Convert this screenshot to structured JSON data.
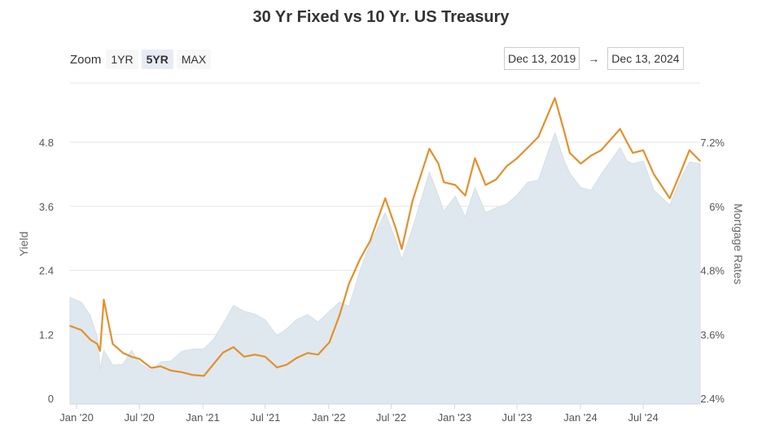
{
  "title": "30 Yr Fixed vs 10 Yr. US Treasury",
  "zoom": {
    "label": "Zoom",
    "buttons": [
      "1YR",
      "5YR",
      "MAX"
    ],
    "active": "5YR"
  },
  "range": {
    "from": "Dec 13, 2019",
    "arrow": "→",
    "to": "Dec 13, 2024"
  },
  "colors": {
    "mortgage_line": "#e3902b",
    "treasury_area": "#dfe8ef",
    "grid": "#e6e6e6"
  },
  "chart_data": {
    "type": "line",
    "x_labels": [
      "Jan '20",
      "Jul '20",
      "Jan '21",
      "Jul '21",
      "Jan '22",
      "Jul '22",
      "Jan '23",
      "Jul '23",
      "Jan '24",
      "Jul '24"
    ],
    "y_left": {
      "label": "Yield",
      "ticks": [
        "0",
        "1.2",
        "2.4",
        "3.6",
        "4.8"
      ],
      "range": [
        0,
        4.8
      ]
    },
    "y_right": {
      "label": "Mortgage Rates",
      "ticks": [
        "2.4%",
        "3.6%",
        "4.8%",
        "6%",
        "7.2%"
      ],
      "range": [
        2.4,
        7.2
      ]
    },
    "grid": true,
    "series": [
      {
        "name": "10 Yr. US Treasury",
        "kind": "area",
        "axis": "left",
        "x": [
          "2019-12-13",
          "2020-01-15",
          "2020-02-10",
          "2020-03-01",
          "2020-03-09",
          "2020-03-20",
          "2020-04-15",
          "2020-05-15",
          "2020-06-08",
          "2020-07-01",
          "2020-08-04",
          "2020-09-01",
          "2020-10-01",
          "2020-11-01",
          "2020-12-01",
          "2021-01-04",
          "2021-02-01",
          "2021-03-01",
          "2021-03-31",
          "2021-05-01",
          "2021-06-01",
          "2021-07-01",
          "2021-08-04",
          "2021-09-01",
          "2021-10-01",
          "2021-11-01",
          "2021-12-01",
          "2022-01-03",
          "2022-02-01",
          "2022-03-01",
          "2022-04-01",
          "2022-05-01",
          "2022-06-14",
          "2022-07-15",
          "2022-08-01",
          "2022-09-01",
          "2022-10-20",
          "2022-11-15",
          "2022-12-01",
          "2023-01-03",
          "2023-02-01",
          "2023-03-01",
          "2023-04-01",
          "2023-05-01",
          "2023-06-01",
          "2023-07-01",
          "2023-08-01",
          "2023-09-01",
          "2023-10-19",
          "2023-11-15",
          "2023-12-01",
          "2024-01-02",
          "2024-02-01",
          "2024-03-01",
          "2024-04-25",
          "2024-05-15",
          "2024-06-01",
          "2024-07-01",
          "2024-08-01",
          "2024-09-16",
          "2024-10-15",
          "2024-11-12",
          "2024-12-13"
        ],
        "values": [
          1.89,
          1.8,
          1.55,
          1.15,
          0.54,
          0.9,
          0.62,
          0.64,
          0.9,
          0.66,
          0.52,
          0.68,
          0.7,
          0.88,
          0.92,
          0.93,
          1.1,
          1.4,
          1.74,
          1.63,
          1.58,
          1.47,
          1.17,
          1.3,
          1.48,
          1.57,
          1.43,
          1.63,
          1.8,
          1.72,
          2.38,
          2.9,
          3.48,
          2.95,
          2.6,
          3.19,
          4.24,
          3.8,
          3.5,
          3.79,
          3.4,
          3.95,
          3.48,
          3.57,
          3.64,
          3.81,
          4.05,
          4.09,
          4.98,
          4.45,
          4.22,
          3.95,
          3.9,
          4.2,
          4.7,
          4.45,
          4.4,
          4.45,
          3.9,
          3.62,
          4.08,
          4.43,
          4.4
        ]
      },
      {
        "name": "30 Yr Fixed",
        "kind": "line",
        "axis": "right",
        "x": [
          "2019-12-13",
          "2020-01-15",
          "2020-02-10",
          "2020-03-01",
          "2020-03-09",
          "2020-03-20",
          "2020-04-15",
          "2020-05-15",
          "2020-06-08",
          "2020-07-01",
          "2020-08-04",
          "2020-09-01",
          "2020-10-01",
          "2020-11-01",
          "2020-12-01",
          "2021-01-04",
          "2021-02-01",
          "2021-03-01",
          "2021-03-31",
          "2021-05-01",
          "2021-06-01",
          "2021-07-01",
          "2021-08-04",
          "2021-09-01",
          "2021-10-01",
          "2021-11-01",
          "2021-12-01",
          "2022-01-03",
          "2022-02-01",
          "2022-03-01",
          "2022-04-01",
          "2022-05-01",
          "2022-06-14",
          "2022-07-15",
          "2022-08-01",
          "2022-09-01",
          "2022-10-20",
          "2022-11-15",
          "2022-12-01",
          "2023-01-03",
          "2023-02-01",
          "2023-03-01",
          "2023-04-01",
          "2023-05-01",
          "2023-06-01",
          "2023-07-01",
          "2023-08-01",
          "2023-09-01",
          "2023-10-19",
          "2023-11-15",
          "2023-12-01",
          "2024-01-02",
          "2024-02-01",
          "2024-03-01",
          "2024-04-25",
          "2024-05-15",
          "2024-06-01",
          "2024-07-01",
          "2024-08-01",
          "2024-09-16",
          "2024-10-15",
          "2024-11-12",
          "2024-12-13"
        ],
        "values": [
          3.76,
          3.68,
          3.5,
          3.42,
          3.29,
          4.25,
          3.42,
          3.25,
          3.18,
          3.14,
          2.97,
          3.0,
          2.92,
          2.89,
          2.84,
          2.82,
          3.04,
          3.26,
          3.36,
          3.18,
          3.22,
          3.18,
          2.98,
          3.03,
          3.16,
          3.25,
          3.22,
          3.45,
          3.95,
          4.55,
          5.0,
          5.35,
          6.15,
          5.58,
          5.2,
          6.1,
          7.08,
          6.8,
          6.45,
          6.4,
          6.2,
          6.9,
          6.4,
          6.5,
          6.75,
          6.9,
          7.1,
          7.3,
          8.03,
          7.4,
          7.0,
          6.8,
          6.95,
          7.05,
          7.45,
          7.2,
          7.0,
          7.05,
          6.6,
          6.15,
          6.6,
          7.05,
          6.85
        ]
      }
    ]
  }
}
